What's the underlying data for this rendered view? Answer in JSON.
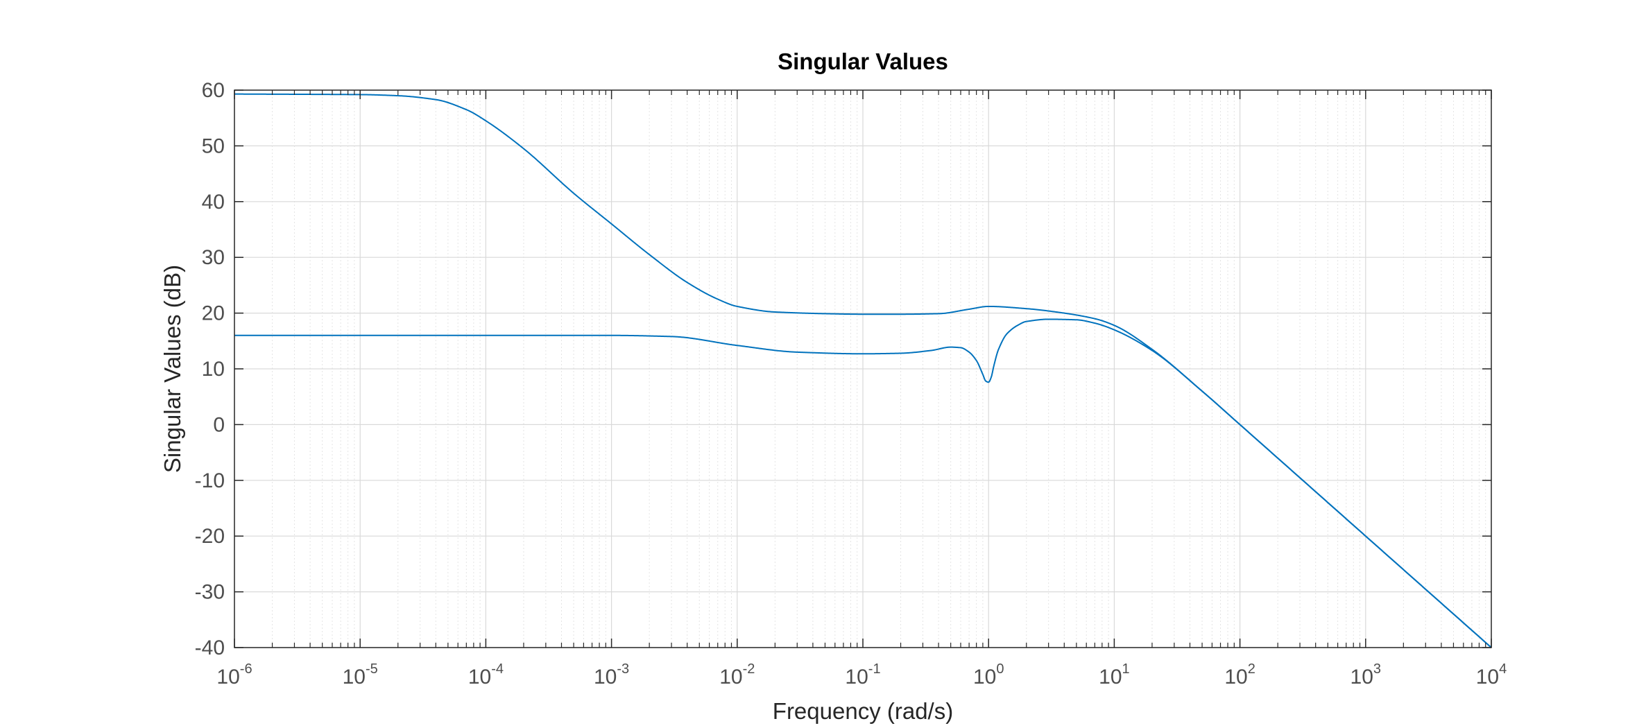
{
  "chart_data": {
    "type": "line",
    "title": "Singular Values",
    "xlabel": "Frequency (rad/s)",
    "ylabel": "Singular Values (dB)",
    "x_scale": "log",
    "xlim": [
      1e-06,
      10000
    ],
    "ylim": [
      -40,
      60
    ],
    "x_ticks": [
      {
        "base": "10",
        "exp": "-6"
      },
      {
        "base": "10",
        "exp": "-5"
      },
      {
        "base": "10",
        "exp": "-4"
      },
      {
        "base": "10",
        "exp": "-3"
      },
      {
        "base": "10",
        "exp": "-2"
      },
      {
        "base": "10",
        "exp": "-1"
      },
      {
        "base": "10",
        "exp": "0"
      },
      {
        "base": "10",
        "exp": "1"
      },
      {
        "base": "10",
        "exp": "2"
      },
      {
        "base": "10",
        "exp": "3"
      },
      {
        "base": "10",
        "exp": "4"
      }
    ],
    "y_ticks": [
      "60",
      "50",
      "40",
      "30",
      "20",
      "10",
      "0",
      "-10",
      "-20",
      "-30",
      "-40"
    ],
    "grid": true,
    "line_color": "#0072bd",
    "series": [
      {
        "x": [
          1e-06,
          1e-05,
          2e-05,
          4e-05,
          7e-05,
          0.0001,
          0.0002,
          0.0005,
          0.001,
          0.002,
          0.004,
          0.007,
          0.01,
          0.02,
          0.05,
          0.1,
          0.2,
          0.4,
          0.7,
          1,
          2,
          4,
          7,
          10,
          20,
          50,
          100,
          1000,
          10000
        ],
        "y": [
          59.3,
          59.2,
          59.0,
          58.3,
          56.5,
          54.5,
          49.5,
          41.5,
          36.0,
          30.5,
          25.5,
          22.5,
          21.2,
          20.2,
          19.9,
          19.8,
          19.8,
          19.9,
          20.7,
          21.2,
          20.8,
          20.0,
          19.0,
          17.8,
          13.5,
          6.0,
          0.0,
          -20.0,
          -40.0
        ]
      },
      {
        "x": [
          1e-06,
          0.0001,
          0.001,
          0.003,
          0.01,
          0.03,
          0.1,
          0.2,
          0.35,
          0.5,
          0.6,
          0.7,
          0.8,
          0.9,
          0.95,
          1.0,
          1.05,
          1.1,
          1.2,
          1.4,
          1.7,
          2,
          3,
          5,
          7,
          10,
          20,
          50,
          100,
          1000,
          10000
        ],
        "y": [
          16.0,
          16.0,
          16.0,
          15.8,
          14.2,
          13.0,
          12.7,
          12.8,
          13.3,
          13.9,
          13.8,
          13.0,
          11.5,
          9.0,
          7.8,
          7.6,
          8.5,
          10.5,
          13.5,
          16.3,
          17.8,
          18.5,
          18.9,
          18.8,
          18.2,
          17.0,
          13.3,
          6.0,
          0.0,
          -20.0,
          -40.0
        ]
      }
    ]
  }
}
